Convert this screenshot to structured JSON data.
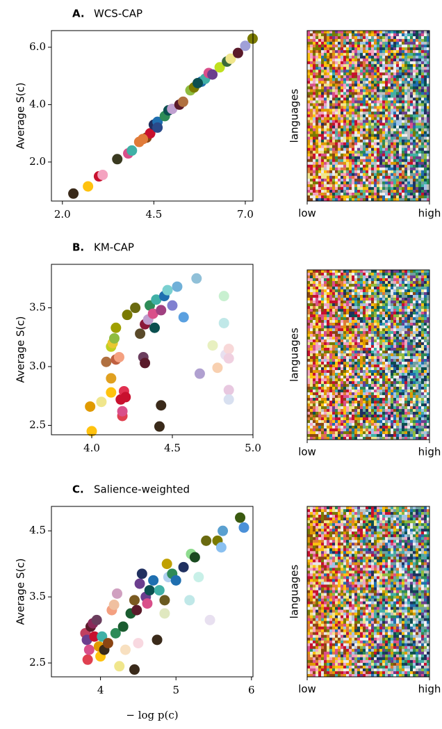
{
  "chart_data": [
    {
      "type": "scatter",
      "panel": "A.",
      "title": "WCS-CAP",
      "y_label": "Average S(c)",
      "x": [
        2.3,
        2.7,
        3.0,
        3.1,
        3.5,
        3.8,
        3.9,
        4.1,
        4.3,
        4.4,
        4.5,
        4.6,
        4.8,
        4.9,
        5.0,
        5.2,
        5.3,
        5.5,
        5.6,
        5.8,
        5.9,
        6.0,
        6.1,
        6.3,
        6.5,
        6.6,
        6.8,
        7.0,
        7.2,
        5.7,
        4.6,
        4.2
      ],
      "y": [
        0.9,
        1.15,
        1.5,
        1.55,
        2.1,
        2.3,
        2.4,
        2.7,
        2.85,
        3.0,
        3.3,
        3.4,
        3.6,
        3.8,
        3.85,
        4.0,
        4.1,
        4.5,
        4.6,
        4.8,
        4.9,
        5.1,
        5.05,
        5.3,
        5.5,
        5.6,
        5.8,
        6.05,
        6.3,
        4.75,
        3.2,
        2.8
      ],
      "colors": [
        "#3a2a1a",
        "#ffc20e",
        "#c8102e",
        "#f4a3c0",
        "#3a3a20",
        "#d94f8a",
        "#40b0a6",
        "#e07b39",
        "#8b4513",
        "#c8102e",
        "#203060",
        "#1f6fb0",
        "#2e8b57",
        "#0b4f4f",
        "#c0a0d0",
        "#5a1a2a",
        "#b07040",
        "#8fbc3f",
        "#7a7a00",
        "#1f6fb0",
        "#40b0a6",
        "#d94f8a",
        "#6b3e8e",
        "#c0e020",
        "#3a6a3a",
        "#f0e68c",
        "#5a1a2a",
        "#a0a0d8",
        "#7a7a00",
        "#0b4f4f",
        "#2a4a8a",
        "#e07b39"
      ],
      "xlim": [
        1.7,
        7.21
      ],
      "ylim": [
        0.64,
        6.58
      ],
      "xticks": [
        {
          "value": 2.0,
          "label": "2.0"
        },
        4.5,
        {
          "value": 7.0,
          "label": "7.0"
        }
      ],
      "yticks": [
        {
          "value": 2.0,
          "label": "2.0"
        },
        {
          "value": 4.0,
          "label": "4.0"
        },
        {
          "value": 6.0,
          "label": "6.0"
        }
      ]
    },
    {
      "type": "heatmap",
      "y_label": "languages",
      "x_tick_labels": [
        "low",
        "high"
      ]
    },
    {
      "type": "scatter",
      "panel": "B.",
      "title": "KM-CAP",
      "y_label": "Average S(c)",
      "x": [
        3.99,
        4.0,
        4.06,
        4.09,
        4.12,
        4.12,
        4.12,
        4.13,
        4.14,
        4.15,
        4.15,
        4.17,
        4.18,
        4.19,
        4.19,
        4.2,
        4.21,
        4.22,
        4.27,
        4.3,
        4.32,
        4.33,
        4.33,
        4.35,
        4.36,
        4.38,
        4.39,
        4.4,
        4.42,
        4.43,
        4.43,
        4.45,
        4.47,
        4.5,
        4.53,
        4.57,
        4.65,
        4.67,
        4.75,
        4.78,
        4.82,
        4.82,
        4.83,
        4.85,
        4.85,
        4.85,
        4.85
      ],
      "y": [
        2.66,
        2.45,
        2.7,
        3.04,
        2.78,
        2.9,
        3.17,
        3.2,
        3.24,
        3.33,
        3.06,
        3.08,
        2.72,
        2.58,
        2.62,
        2.79,
        2.74,
        3.44,
        3.5,
        3.28,
        3.08,
        3.03,
        3.36,
        3.4,
        3.52,
        3.45,
        3.33,
        3.57,
        2.49,
        2.67,
        3.48,
        3.6,
        3.65,
        3.52,
        3.68,
        3.42,
        3.75,
        2.94,
        3.18,
        2.99,
        3.6,
        3.37,
        3.1,
        3.15,
        3.07,
        2.8,
        2.72
      ],
      "colors": [
        "#e09a00",
        "#ffc20e",
        "#f0e68c",
        "#b07040",
        "#ffc20e",
        "#e0a020",
        "#c0d020",
        "#e8c830",
        "#8fbc3f",
        "#a0a000",
        "#c06040",
        "#f4a080",
        "#c8102e",
        "#e04050",
        "#d94f8a",
        "#e03050",
        "#c8102e",
        "#7a7a00",
        "#6a6a10",
        "#5a4a2a",
        "#6b3e5e",
        "#5a1a2a",
        "#8b1a3a",
        "#c0a0d0",
        "#2e8b57",
        "#d94f8a",
        "#0b4f4f",
        "#40b0a6",
        "#3a2a1a",
        "#3a2a1a",
        "#a04080",
        "#1f6fb0",
        "#7ad0d0",
        "#8080d0",
        "#70b0d8",
        "#5aa0e0",
        "#90c0d8",
        "#b0a0d0",
        "#e8f0c0",
        "#f8d0b0",
        "#c8f0d0",
        "#c0e8e8",
        "#e8e0f0",
        "#f8d8d8",
        "#f0d0e0",
        "#e8c8e0",
        "#d8e0f0"
      ],
      "xlim": [
        3.75,
        5.0
      ],
      "ylim": [
        2.42,
        3.87
      ],
      "xticks": [
        {
          "value": 4.0,
          "label": "4.0"
        },
        4.5,
        {
          "value": 5.0,
          "label": "5.0"
        }
      ],
      "yticks": [
        2.5,
        {
          "value": 3.0,
          "label": "3.0"
        },
        3.5
      ]
    },
    {
      "type": "heatmap",
      "y_label": "languages",
      "x_tick_labels": [
        "low",
        "high"
      ]
    },
    {
      "type": "scatter",
      "panel": "C.",
      "title": "Salience-weighted",
      "y_label": "Average S(c)",
      "x_label": "− log p(c)",
      "x": [
        3.8,
        3.82,
        3.83,
        3.85,
        3.87,
        3.9,
        3.92,
        3.95,
        3.98,
        4.0,
        4.02,
        4.05,
        4.1,
        4.15,
        4.18,
        4.2,
        4.22,
        4.25,
        4.3,
        4.33,
        4.4,
        4.45,
        4.48,
        4.5,
        4.52,
        4.55,
        4.6,
        4.62,
        4.65,
        4.7,
        4.75,
        4.78,
        4.85,
        4.88,
        4.9,
        4.95,
        5.0,
        5.1,
        5.18,
        5.2,
        5.25,
        5.3,
        5.4,
        5.45,
        5.55,
        5.6,
        5.62,
        5.85,
        5.9,
        4.45,
        4.85
      ],
      "y": [
        2.95,
        2.85,
        2.55,
        2.7,
        3.05,
        3.1,
        2.9,
        3.15,
        2.75,
        2.6,
        2.9,
        2.7,
        2.8,
        3.3,
        3.38,
        2.95,
        3.55,
        2.45,
        3.05,
        2.7,
        3.25,
        3.45,
        3.3,
        2.8,
        3.7,
        3.85,
        3.5,
        3.4,
        3.6,
        3.75,
        2.85,
        3.6,
        3.45,
        4.0,
        3.8,
        3.85,
        3.75,
        3.95,
        3.45,
        4.15,
        4.1,
        3.8,
        4.35,
        3.15,
        4.35,
        4.25,
        4.5,
        4.7,
        4.55,
        2.4,
        3.25
      ],
      "colors": [
        "#c04060",
        "#6b3e8e",
        "#e04050",
        "#d94f8a",
        "#5a1a2a",
        "#8b2a5a",
        "#c8102e",
        "#6b3e5e",
        "#e09a00",
        "#ffc20e",
        "#40b0a6",
        "#3a2a1a",
        "#8b4513",
        "#f4a080",
        "#f0c0a0",
        "#2e8b57",
        "#d0a0c0",
        "#f0e68c",
        "#1a5c30",
        "#f8e0c0",
        "#1a5c30",
        "#7a5a20",
        "#5a1a2a",
        "#f8d8e0",
        "#6b3e8e",
        "#203060",
        "#6b3e8e",
        "#d94f8a",
        "#0b4f4f",
        "#1f6fb0",
        "#3a2a1a",
        "#40b0a6",
        "#6a5a20",
        "#c0a000",
        "#b0d0f0",
        "#2e8b57",
        "#1f6fb0",
        "#203060",
        "#c0e8e8",
        "#8fdc8f",
        "#1a4a20",
        "#c8f0e8",
        "#6a6a10",
        "#e8e0f0",
        "#7a7a00",
        "#8ac0f0",
        "#5aa0d0",
        "#3a5a10",
        "#4a90d8",
        "#3a2a1a",
        "#e0e8c0"
      ],
      "xlim": [
        3.35,
        6.02
      ],
      "ylim": [
        2.29,
        4.87
      ],
      "xticks": [
        4,
        5,
        6
      ],
      "yticks": [
        2.5,
        3.5,
        4.5
      ]
    },
    {
      "type": "heatmap",
      "y_label": "languages",
      "x_tick_labels": [
        "low",
        "high"
      ]
    }
  ]
}
